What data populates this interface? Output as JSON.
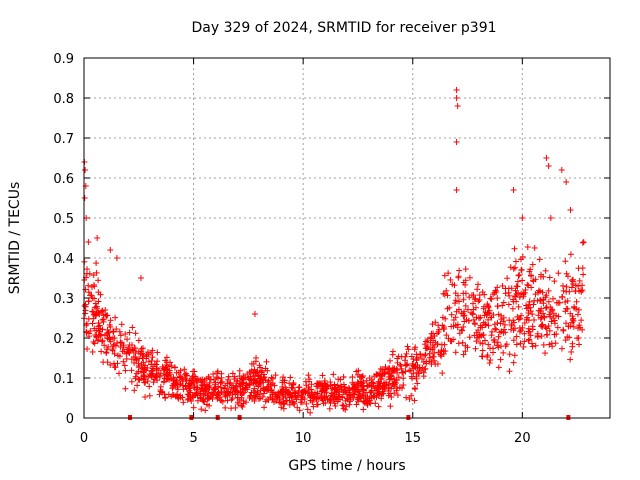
{
  "chart_data": {
    "type": "scatter",
    "title": "Day 329 of 2024, SRMTID for receiver p391",
    "xlabel": "GPS time / hours",
    "ylabel": "SRMTID / TECUs",
    "xlim": [
      0,
      24
    ],
    "ylim": [
      0,
      0.9
    ],
    "xticks": [
      0,
      5,
      10,
      15,
      20
    ],
    "yticks": [
      0,
      0.1,
      0.2,
      0.3,
      0.4,
      0.5,
      0.6,
      0.7,
      0.8,
      0.9
    ],
    "xtick_labels": [
      "0",
      "5",
      "10",
      "15",
      "20"
    ],
    "ytick_labels": [
      "0",
      "0.1",
      "0.2",
      "0.3",
      "0.4",
      "0.5",
      "0.6",
      "0.7",
      "0.8",
      "0.9"
    ],
    "grid": true,
    "marker": "+",
    "color": "#ff0000",
    "series": [
      {
        "name": "SRMTID",
        "trend_points": [
          [
            0.0,
            0.3
          ],
          [
            0.3,
            0.28
          ],
          [
            0.6,
            0.25
          ],
          [
            1.0,
            0.2
          ],
          [
            1.5,
            0.17
          ],
          [
            2.0,
            0.15
          ],
          [
            2.5,
            0.14
          ],
          [
            3.0,
            0.12
          ],
          [
            3.5,
            0.1
          ],
          [
            4.0,
            0.09
          ],
          [
            4.5,
            0.08
          ],
          [
            5.0,
            0.08
          ],
          [
            5.5,
            0.07
          ],
          [
            6.0,
            0.07
          ],
          [
            6.5,
            0.07
          ],
          [
            7.0,
            0.07
          ],
          [
            7.5,
            0.08
          ],
          [
            8.0,
            0.09
          ],
          [
            8.5,
            0.08
          ],
          [
            9.0,
            0.06
          ],
          [
            9.5,
            0.06
          ],
          [
            10.0,
            0.06
          ],
          [
            10.5,
            0.06
          ],
          [
            11.0,
            0.06
          ],
          [
            11.5,
            0.06
          ],
          [
            12.0,
            0.06
          ],
          [
            12.5,
            0.07
          ],
          [
            13.0,
            0.07
          ],
          [
            13.5,
            0.08
          ],
          [
            14.0,
            0.1
          ],
          [
            14.5,
            0.11
          ],
          [
            15.0,
            0.12
          ],
          [
            15.5,
            0.14
          ],
          [
            16.0,
            0.18
          ],
          [
            16.5,
            0.23
          ],
          [
            17.0,
            0.27
          ],
          [
            17.5,
            0.28
          ],
          [
            18.0,
            0.26
          ],
          [
            18.5,
            0.25
          ],
          [
            19.0,
            0.24
          ],
          [
            19.5,
            0.27
          ],
          [
            20.0,
            0.3
          ],
          [
            20.5,
            0.28
          ],
          [
            21.0,
            0.27
          ],
          [
            21.5,
            0.26
          ],
          [
            22.0,
            0.26
          ],
          [
            22.5,
            0.28
          ],
          [
            22.8,
            0.32
          ]
        ],
        "highlight_points": [
          [
            0.02,
            0.64
          ],
          [
            0.05,
            0.62
          ],
          [
            0.08,
            0.58
          ],
          [
            0.03,
            0.55
          ],
          [
            0.1,
            0.5
          ],
          [
            0.2,
            0.44
          ],
          [
            0.6,
            0.45
          ],
          [
            1.2,
            0.42
          ],
          [
            1.5,
            0.4
          ],
          [
            2.6,
            0.35
          ],
          [
            7.8,
            0.26
          ],
          [
            17.0,
            0.82
          ],
          [
            17.0,
            0.8
          ],
          [
            17.05,
            0.78
          ],
          [
            17.0,
            0.69
          ],
          [
            17.0,
            0.57
          ],
          [
            19.6,
            0.57
          ],
          [
            20.0,
            0.5
          ],
          [
            21.1,
            0.65
          ],
          [
            21.2,
            0.63
          ],
          [
            21.8,
            0.62
          ],
          [
            22.0,
            0.59
          ],
          [
            22.2,
            0.52
          ],
          [
            21.3,
            0.5
          ],
          [
            22.8,
            0.44
          ]
        ],
        "zero_points": [
          2.1,
          4.9,
          6.1,
          7.1,
          14.8,
          22.1
        ]
      }
    ]
  }
}
